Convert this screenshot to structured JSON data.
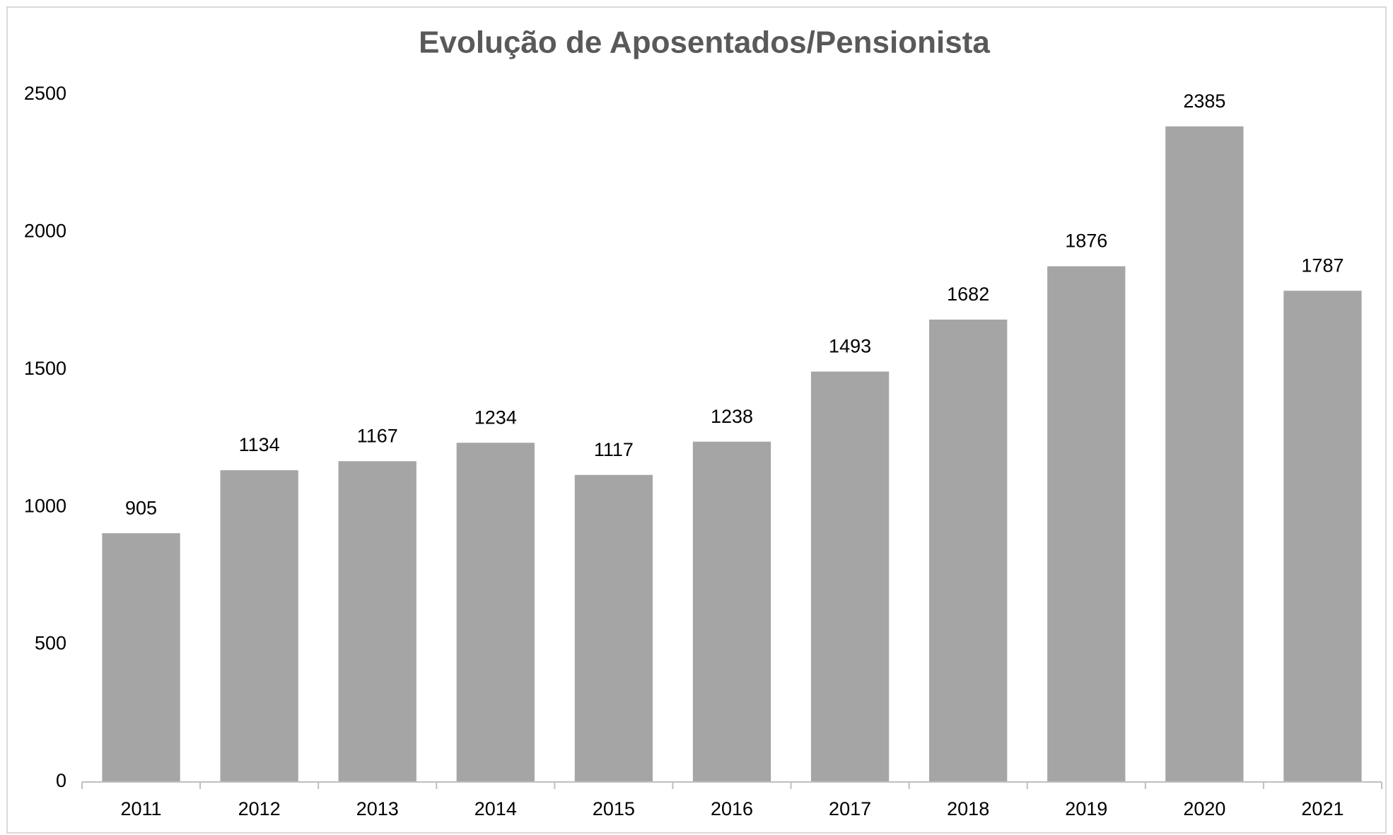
{
  "chart_data": {
    "type": "bar",
    "title": "Evolução de Aposentados/Pensionista",
    "categories": [
      "2011",
      "2012",
      "2013",
      "2014",
      "2015",
      "2016",
      "2017",
      "2018",
      "2019",
      "2020",
      "2021"
    ],
    "values": [
      905,
      1134,
      1167,
      1234,
      1117,
      1238,
      1493,
      1682,
      1876,
      2385,
      1787
    ],
    "color": "#a5a5a5",
    "ylim": [
      0,
      2500
    ],
    "yticks": [
      0,
      500,
      1000,
      1500,
      2000,
      2500
    ],
    "grid": false
  }
}
